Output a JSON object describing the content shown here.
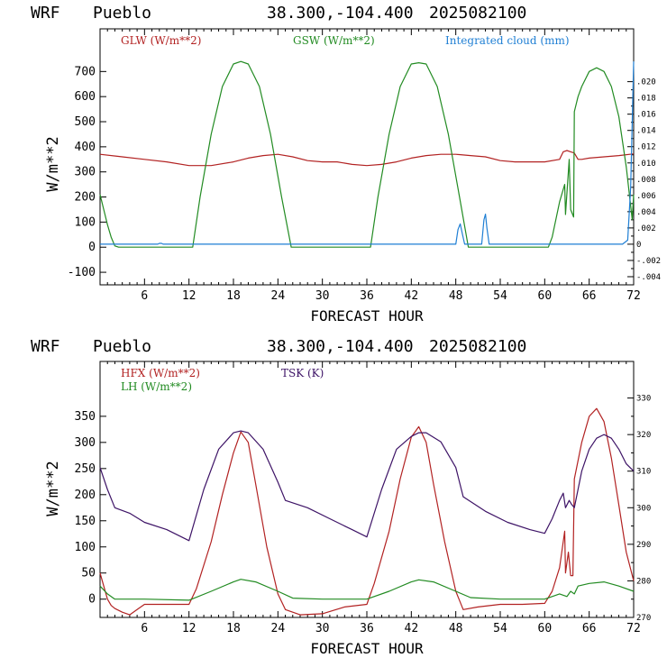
{
  "chart_data": [
    {
      "type": "line",
      "header": {
        "model": "WRF",
        "location": "Pueblo",
        "coords": "38.300,-104.400",
        "init": "2025082100"
      },
      "xlabel": "FORECAST HOUR",
      "ylabel": "W/m**2",
      "xlim": [
        0,
        72
      ],
      "ylim": [
        -150,
        870
      ],
      "xticks": [
        6,
        12,
        18,
        24,
        30,
        36,
        42,
        48,
        54,
        60,
        66,
        72
      ],
      "yticks": [
        -100,
        0,
        100,
        200,
        300,
        400,
        500,
        600,
        700
      ],
      "right_axis": {
        "ylim": [
          -0.005,
          0.0265
        ],
        "ticks": [
          "-.004",
          "-.002",
          "0",
          ".002",
          ".004",
          ".006",
          ".008",
          ".010",
          ".012",
          ".014",
          ".016",
          ".018",
          ".020"
        ],
        "tick_values": [
          -0.004,
          -0.002,
          0,
          0.002,
          0.004,
          0.006,
          0.008,
          0.01,
          0.012,
          0.014,
          0.016,
          0.018,
          0.02
        ]
      },
      "series": [
        {
          "name": "GLW (W/m**2)",
          "color": "#b22222",
          "axis": "left",
          "x": [
            0,
            3,
            6,
            9,
            12,
            15,
            18,
            20,
            22,
            24,
            26,
            28,
            30,
            32,
            34,
            36,
            38,
            40,
            42,
            44,
            46,
            48,
            50,
            52,
            54,
            56,
            58,
            60,
            62,
            62.5,
            63,
            63.5,
            64,
            64.5,
            65,
            66,
            68,
            70,
            72
          ],
          "y": [
            370,
            360,
            350,
            340,
            325,
            325,
            340,
            355,
            365,
            370,
            360,
            345,
            340,
            340,
            330,
            325,
            330,
            340,
            355,
            365,
            370,
            370,
            365,
            360,
            345,
            340,
            340,
            340,
            350,
            380,
            385,
            380,
            375,
            350,
            350,
            355,
            360,
            365,
            372
          ]
        },
        {
          "name": "GSW (W/m**2)",
          "color": "#228b22",
          "axis": "left",
          "x": [
            0,
            0.5,
            1,
            1.5,
            2,
            2.5,
            12.5,
            13.5,
            15,
            16.5,
            18,
            19,
            20,
            21.5,
            23,
            24.5,
            25.8,
            36.5,
            37.5,
            39,
            40.5,
            42,
            43,
            44,
            45.5,
            47,
            48.5,
            49.7,
            60.5,
            61,
            62,
            62.7,
            62.8,
            63.3,
            63.5,
            63.9,
            64,
            64.5,
            65,
            66,
            67,
            68,
            69,
            70,
            71,
            71.8,
            72
          ],
          "y": [
            210,
            150,
            90,
            40,
            5,
            0,
            0,
            200,
            450,
            640,
            730,
            740,
            730,
            640,
            450,
            200,
            0,
            0,
            200,
            450,
            640,
            730,
            735,
            730,
            640,
            450,
            200,
            0,
            0,
            40,
            180,
            250,
            130,
            350,
            150,
            120,
            540,
            600,
            640,
            700,
            715,
            700,
            640,
            520,
            320,
            110,
            210
          ]
        },
        {
          "name": "Integrated cloud (mm)",
          "color": "#1f7fd4",
          "axis": "right",
          "x": [
            0,
            7.8,
            8,
            8.3,
            8.5,
            48,
            48.3,
            48.6,
            48.9,
            49.2,
            51.5,
            51.8,
            52,
            52.2,
            52.5,
            70.5,
            71.2,
            71.6,
            72
          ],
          "y": [
            0,
            0,
            0.0001,
            0.0001,
            0,
            0,
            0.0018,
            0.0025,
            0.0012,
            0,
            0,
            0.003,
            0.0037,
            0.002,
            0,
            0,
            0.0005,
            0.007,
            0.0225
          ]
        }
      ]
    },
    {
      "type": "line",
      "header": {
        "model": "WRF",
        "location": "Pueblo",
        "coords": "38.300,-104.400",
        "init": "2025082100"
      },
      "xlabel": "FORECAST HOUR",
      "ylabel": "W/m**2",
      "xlim": [
        0,
        72
      ],
      "ylim": [
        -35,
        455
      ],
      "xticks": [
        6,
        12,
        18,
        24,
        30,
        36,
        42,
        48,
        54,
        60,
        66,
        72
      ],
      "yticks": [
        0,
        50,
        100,
        150,
        200,
        250,
        300,
        350
      ],
      "right_axis": {
        "ylim": [
          270,
          340
        ],
        "ticks": [
          "270",
          "280",
          "290",
          "300",
          "310",
          "320",
          "330"
        ],
        "tick_values": [
          270,
          280,
          290,
          300,
          310,
          320,
          330
        ]
      },
      "series": [
        {
          "name": "HFX (W/m**2)",
          "color": "#b22222",
          "axis": "left",
          "x": [
            0,
            0.5,
            1,
            1.5,
            2,
            3,
            4,
            5,
            6,
            9,
            12,
            13,
            15,
            16.5,
            18,
            19,
            20,
            21,
            22.5,
            24,
            25,
            27,
            30,
            33,
            36,
            37,
            39,
            40.5,
            42,
            43,
            44,
            45,
            46.5,
            48,
            49,
            51,
            54,
            57,
            60,
            61,
            62,
            62.7,
            62.8,
            63.2,
            63.5,
            63.8,
            64,
            65,
            66,
            67,
            68,
            69,
            70,
            71,
            72
          ],
          "y": [
            50,
            25,
            0,
            -12,
            -18,
            -25,
            -30,
            -20,
            -10,
            -10,
            -10,
            20,
            110,
            200,
            280,
            320,
            300,
            220,
            100,
            10,
            -20,
            -30,
            -28,
            -15,
            -10,
            30,
            130,
            230,
            310,
            330,
            300,
            220,
            110,
            15,
            -20,
            -15,
            -10,
            -10,
            -8,
            15,
            60,
            130,
            50,
            90,
            45,
            45,
            230,
            300,
            350,
            365,
            340,
            270,
            180,
            90,
            35
          ]
        },
        {
          "name": "LH (W/m**2)",
          "color": "#228b22",
          "axis": "left",
          "x": [
            0,
            1,
            2,
            6,
            12,
            15,
            18,
            19,
            21,
            24,
            26,
            30,
            36,
            39,
            42,
            43,
            45,
            48,
            50,
            54,
            60,
            61,
            62,
            63,
            63.5,
            64,
            64.5,
            66,
            68,
            70,
            72
          ],
          "y": [
            25,
            10,
            0,
            0,
            -2,
            15,
            33,
            38,
            33,
            15,
            2,
            0,
            0,
            15,
            33,
            37,
            33,
            15,
            3,
            0,
            0,
            5,
            10,
            5,
            15,
            10,
            25,
            30,
            33,
            25,
            15
          ]
        },
        {
          "name": "TSK (K)",
          "color": "#3d1366",
          "axis": "right",
          "x": [
            0,
            1,
            2,
            4,
            6,
            9,
            12,
            14,
            16,
            18,
            19,
            20,
            22,
            24,
            25,
            28,
            31,
            34,
            36,
            38,
            40,
            42,
            43,
            44,
            46,
            48,
            49,
            52,
            55,
            58,
            60,
            61,
            62,
            62.5,
            62.8,
            63.3,
            63.6,
            64,
            64.5,
            65,
            66,
            67,
            68,
            69,
            70,
            71,
            72
          ],
          "y": [
            311,
            305,
            300,
            298.5,
            296,
            294,
            291,
            305,
            316,
            320.5,
            321,
            320.5,
            316,
            307,
            302,
            300,
            297,
            294,
            292,
            305,
            316,
            319.5,
            320.5,
            320.5,
            318,
            311,
            303,
            299,
            296,
            294,
            293,
            297,
            302,
            304,
            300,
            302,
            301,
            300,
            305,
            310,
            316,
            319,
            320,
            319,
            316,
            312,
            310
          ]
        }
      ]
    }
  ]
}
